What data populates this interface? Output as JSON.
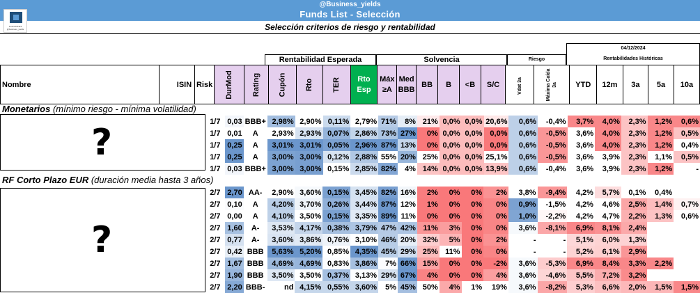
{
  "header": {
    "handle": "@Business_yields",
    "title": "Funds List - Selección",
    "subtitle": "Selección criterios de riesgo y rentabilidad",
    "logo_line1": "InversiónFácil",
    "logo_line2": "@business_yields"
  },
  "groups": {
    "rentabilidad": "Rentabilidad Esperada",
    "solvencia": "Solvencia",
    "riesgo": "Riesgo",
    "date": "04/12/2024",
    "historicas": "Rentabilidades Históricas"
  },
  "columns": {
    "nombre": "Nombre",
    "isin": "ISIN",
    "risk": "Risk",
    "durmod": "DurMod",
    "rating": "Rating",
    "cupon": "Cupón",
    "rto": "Rto",
    "ter": "TER",
    "rto_esp_1": "Rto",
    "rto_esp_2": "Esp",
    "max_1": "Máx",
    "max_2": "≥A",
    "med_1": "Med",
    "med_2": "BBB",
    "bb": "BB",
    "b": "B",
    "ltb": "<B",
    "sc": "S/C",
    "vdat": "Vdat 3a",
    "maxcaida": "Máxima Caída 3a",
    "ytd": "YTD",
    "m12": "12m",
    "a3": "3a",
    "a5": "5a",
    "a10": "10a"
  },
  "sections": {
    "monetarios": {
      "title": "Monetarios",
      "desc": " (mínimo riesgo - mínima volatilidad)",
      "placeholder": "?",
      "rows": [
        [
          "1/7",
          "0,03",
          "BBB+",
          "2,98%",
          "2,90%",
          "0,11%",
          "2,79%",
          "71%",
          "8%",
          "21%",
          "0,0%",
          "0,0%",
          "20,6%",
          "0,6%",
          "-0,4%",
          "3,7%",
          "4,0%",
          "2,3%",
          "1,2%",
          "0,6%"
        ],
        [
          "1/7",
          "0,01",
          "A",
          "2,93%",
          "2,93%",
          "0,07%",
          "2,86%",
          "73%",
          "27%",
          "0%",
          "0,0%",
          "0,0%",
          "0,0%",
          "0,6%",
          "-0,5%",
          "3,6%",
          "4,0%",
          "2,3%",
          "1,2%",
          "0,5%"
        ],
        [
          "1/7",
          "0,25",
          "A",
          "3,01%",
          "3,01%",
          "0,05%",
          "2,96%",
          "87%",
          "13%",
          "0%",
          "0,0%",
          "0,0%",
          "0,0%",
          "0,6%",
          "-0,5%",
          "3,6%",
          "4,0%",
          "2,3%",
          "1,2%",
          "0,4%"
        ],
        [
          "1/7",
          "0,25",
          "A",
          "3,00%",
          "3,00%",
          "0,12%",
          "2,88%",
          "55%",
          "20%",
          "25%",
          "0,0%",
          "0,0%",
          "25,1%",
          "0,6%",
          "-0,5%",
          "3,6%",
          "3,9%",
          "2,3%",
          "1,1%",
          "0,5%"
        ],
        [
          "1/7",
          "0,03",
          "BBB+",
          "3,00%",
          "3,00%",
          "0,15%",
          "2,85%",
          "82%",
          "4%",
          "14%",
          "0,0%",
          "0,0%",
          "13,9%",
          "0,6%",
          "-0,4%",
          "3,6%",
          "3,9%",
          "2,3%",
          "1,2%",
          "-"
        ]
      ]
    },
    "rfcorto": {
      "title": "RF Corto Plazo EUR",
      "desc": " (duración media hasta 3 años)",
      "placeholder": "?",
      "rows": [
        [
          "2/7",
          "2,70",
          "AA-",
          "2,90%",
          "3,60%",
          "0,15%",
          "3,45%",
          "82%",
          "16%",
          "2%",
          "0%",
          "0%",
          "2%",
          "3,8%",
          "-9,4%",
          "4,2%",
          "5,7%",
          "0,1%",
          "0,4%",
          ""
        ],
        [
          "2/7",
          "0,10",
          "A",
          "4,20%",
          "3,70%",
          "0,26%",
          "3,44%",
          "87%",
          "12%",
          "1%",
          "0%",
          "0%",
          "0%",
          "0,9%",
          "-1,5%",
          "4,2%",
          "4,6%",
          "2,5%",
          "1,4%",
          "0,7%"
        ],
        [
          "2/7",
          "0,00",
          "A",
          "4,10%",
          "3,50%",
          "0,15%",
          "3,35%",
          "89%",
          "11%",
          "0%",
          "0%",
          "0%",
          "0%",
          "1,0%",
          "-2,2%",
          "4,2%",
          "4,7%",
          "2,2%",
          "1,3%",
          "0,6%"
        ],
        [
          "2/7",
          "1,60",
          "A-",
          "3,53%",
          "4,17%",
          "0,38%",
          "3,79%",
          "47%",
          "42%",
          "11%",
          "3%",
          "0%",
          "0%",
          "3,6%",
          "-8,1%",
          "6,9%",
          "8,1%",
          "2,4%",
          "",
          ""
        ],
        [
          "2/7",
          "0,77",
          "A-",
          "3,60%",
          "3,86%",
          "0,76%",
          "3,10%",
          "46%",
          "20%",
          "32%",
          "5%",
          "0%",
          "2%",
          "-",
          "-",
          "5,1%",
          "6,0%",
          "1,3%",
          "",
          ""
        ],
        [
          "2/7",
          "0,42",
          "BBB",
          "5,63%",
          "5,20%",
          "0,85%",
          "4,35%",
          "45%",
          "29%",
          "25%",
          "11%",
          "0%",
          "0%",
          "-",
          "-",
          "5,2%",
          "6,1%",
          "2,9%",
          "",
          ""
        ],
        [
          "2/7",
          "1,67",
          "BBB",
          "4,69%",
          "4,69%",
          "0,83%",
          "3,86%",
          "7%",
          "66%",
          "15%",
          "0%",
          "0%",
          "-2%",
          "3,6%",
          "-5,3%",
          "6,9%",
          "8,4%",
          "3,3%",
          "2,2%",
          ""
        ],
        [
          "2/7",
          "1,90",
          "BBB",
          "3,50%",
          "3,50%",
          "0,37%",
          "3,13%",
          "29%",
          "67%",
          "4%",
          "0%",
          "0%",
          "4%",
          "3,6%",
          "-4,6%",
          "5,5%",
          "7,2%",
          "3,2%",
          "",
          ""
        ],
        [
          "2/7",
          "2,20",
          "BBB-",
          "nd",
          "4,15%",
          "0,55%",
          "3,60%",
          "5%",
          "45%",
          "50%",
          "4%",
          "1%",
          "19%",
          "3,6%",
          "-8,2%",
          "5,3%",
          "6,6%",
          "2,0%",
          "1,5%",
          "1,5%"
        ]
      ]
    }
  }
}
